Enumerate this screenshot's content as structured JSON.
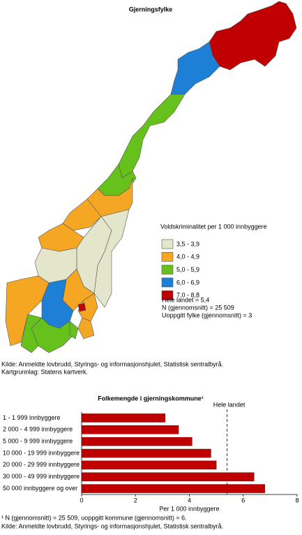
{
  "map": {
    "title": "Gjerningsfylke",
    "legend": {
      "title": "Voldskriminalitet per 1 000 innbyggere",
      "items": [
        {
          "label": "3,5 - 3,9",
          "color": "#e4e6cc"
        },
        {
          "label": "4,0 - 4,9",
          "color": "#f5a623"
        },
        {
          "label": "5,0 - 5,9",
          "color": "#66c21a"
        },
        {
          "label": "6,0 - 6,9",
          "color": "#1e7fd6"
        },
        {
          "label": "7,0 - 8,8",
          "color": "#c00000"
        }
      ]
    },
    "notes": [
      "Hele landet = 5,4",
      "N (gjennomsnitt) = 25 509",
      "Uoppgitt fylke (gjennomsnitt) = 3"
    ],
    "source": [
      "Kilde: Anmeldte lovbrudd, Styrings- og informasjonshjulet, Statistisk sentralbyrå.",
      "Kartgrunnlag: Statens kartverk."
    ]
  },
  "chart_data": {
    "type": "bar",
    "orientation": "horizontal",
    "title": "Folkemengde i gjerningskommune¹",
    "categories": [
      "1 - 1 999 innbyggere",
      "2 000 - 4 999 innbyggere",
      "5 000 - 9 999 innbyggere",
      "10 000 - 19 999 innbyggere",
      "20 000 - 29 999 innbyggere",
      "30 000 - 49 999 innbyggere",
      "50 000 innbyggere og over"
    ],
    "values": [
      3.1,
      3.6,
      4.1,
      4.8,
      5.0,
      6.4,
      6.8
    ],
    "color": "#c00000",
    "xlim": [
      0,
      8
    ],
    "xticks": [
      0,
      2,
      4,
      6,
      8
    ],
    "xlabel": "Per 1 000 innbyggere",
    "reference_line": {
      "label": "Hele landet",
      "value": 5.4
    },
    "footnotes": [
      "¹ N (gjennomsnitt) = 25 509, uoppgitt kommune (gjennomsnitt) = 6.",
      "Kilde: Anmeldte lovbrudd, Styrings- og informasjonshjulet, Statistisk sentralbyrå."
    ]
  }
}
